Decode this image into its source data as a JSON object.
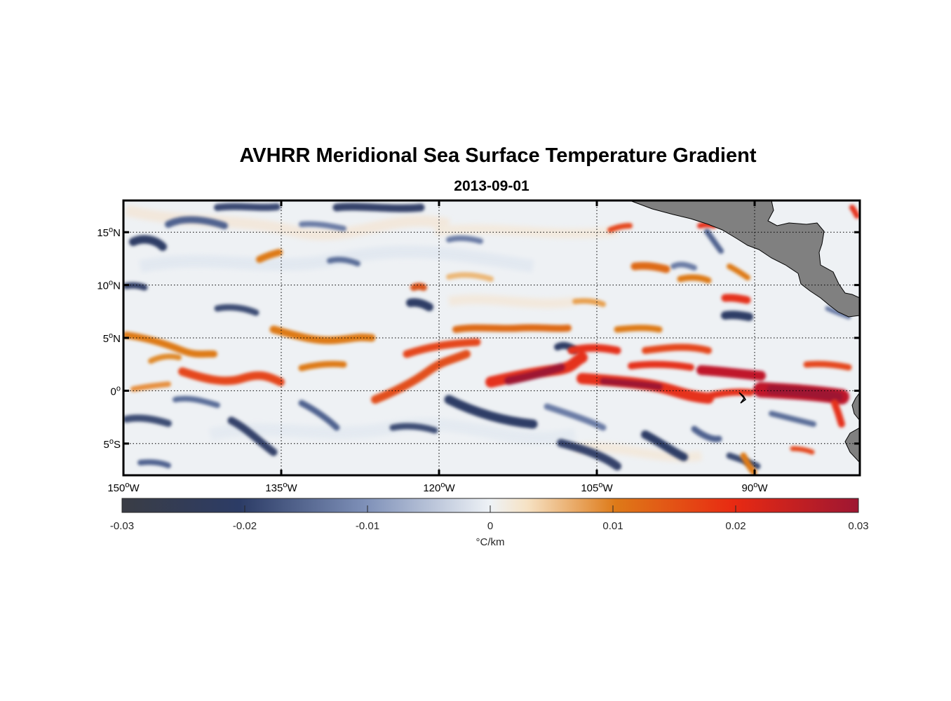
{
  "figure": {
    "title": "AVHRR Meridional Sea Surface Temperature Gradient",
    "subtitle": "2013-09-01"
  },
  "map": {
    "lon_range": [
      -150,
      -80
    ],
    "lat_range": [
      -8,
      18
    ],
    "grid": true,
    "lon_ticks": [
      {
        "value": -150,
        "deg": "150",
        "hemi": "W"
      },
      {
        "value": -135,
        "deg": "135",
        "hemi": "W"
      },
      {
        "value": -120,
        "deg": "120",
        "hemi": "W"
      },
      {
        "value": -105,
        "deg": "105",
        "hemi": "W"
      },
      {
        "value": -90,
        "deg": "90",
        "hemi": "W"
      }
    ],
    "lat_ticks": [
      {
        "value": 15,
        "deg": "15",
        "hemi": "N"
      },
      {
        "value": 10,
        "deg": "10",
        "hemi": "N"
      },
      {
        "value": 5,
        "deg": "5",
        "hemi": "N"
      },
      {
        "value": 0,
        "deg": "0",
        "hemi": ""
      },
      {
        "value": -5,
        "deg": "5",
        "hemi": "S"
      }
    ],
    "land_color": "#808080"
  },
  "colorbar": {
    "range": [
      -0.03,
      0.03
    ],
    "ticks": [
      "-0.03",
      "-0.02",
      "-0.01",
      "0",
      "0.01",
      "0.02",
      "0.03"
    ],
    "unit": "°C/km",
    "colors": [
      "#3a3d45",
      "#2c3c66",
      "#7e90b8",
      "#eef2f6",
      "#f6e2c4",
      "#de7a18",
      "#e82a12",
      "#9e1632"
    ]
  }
}
